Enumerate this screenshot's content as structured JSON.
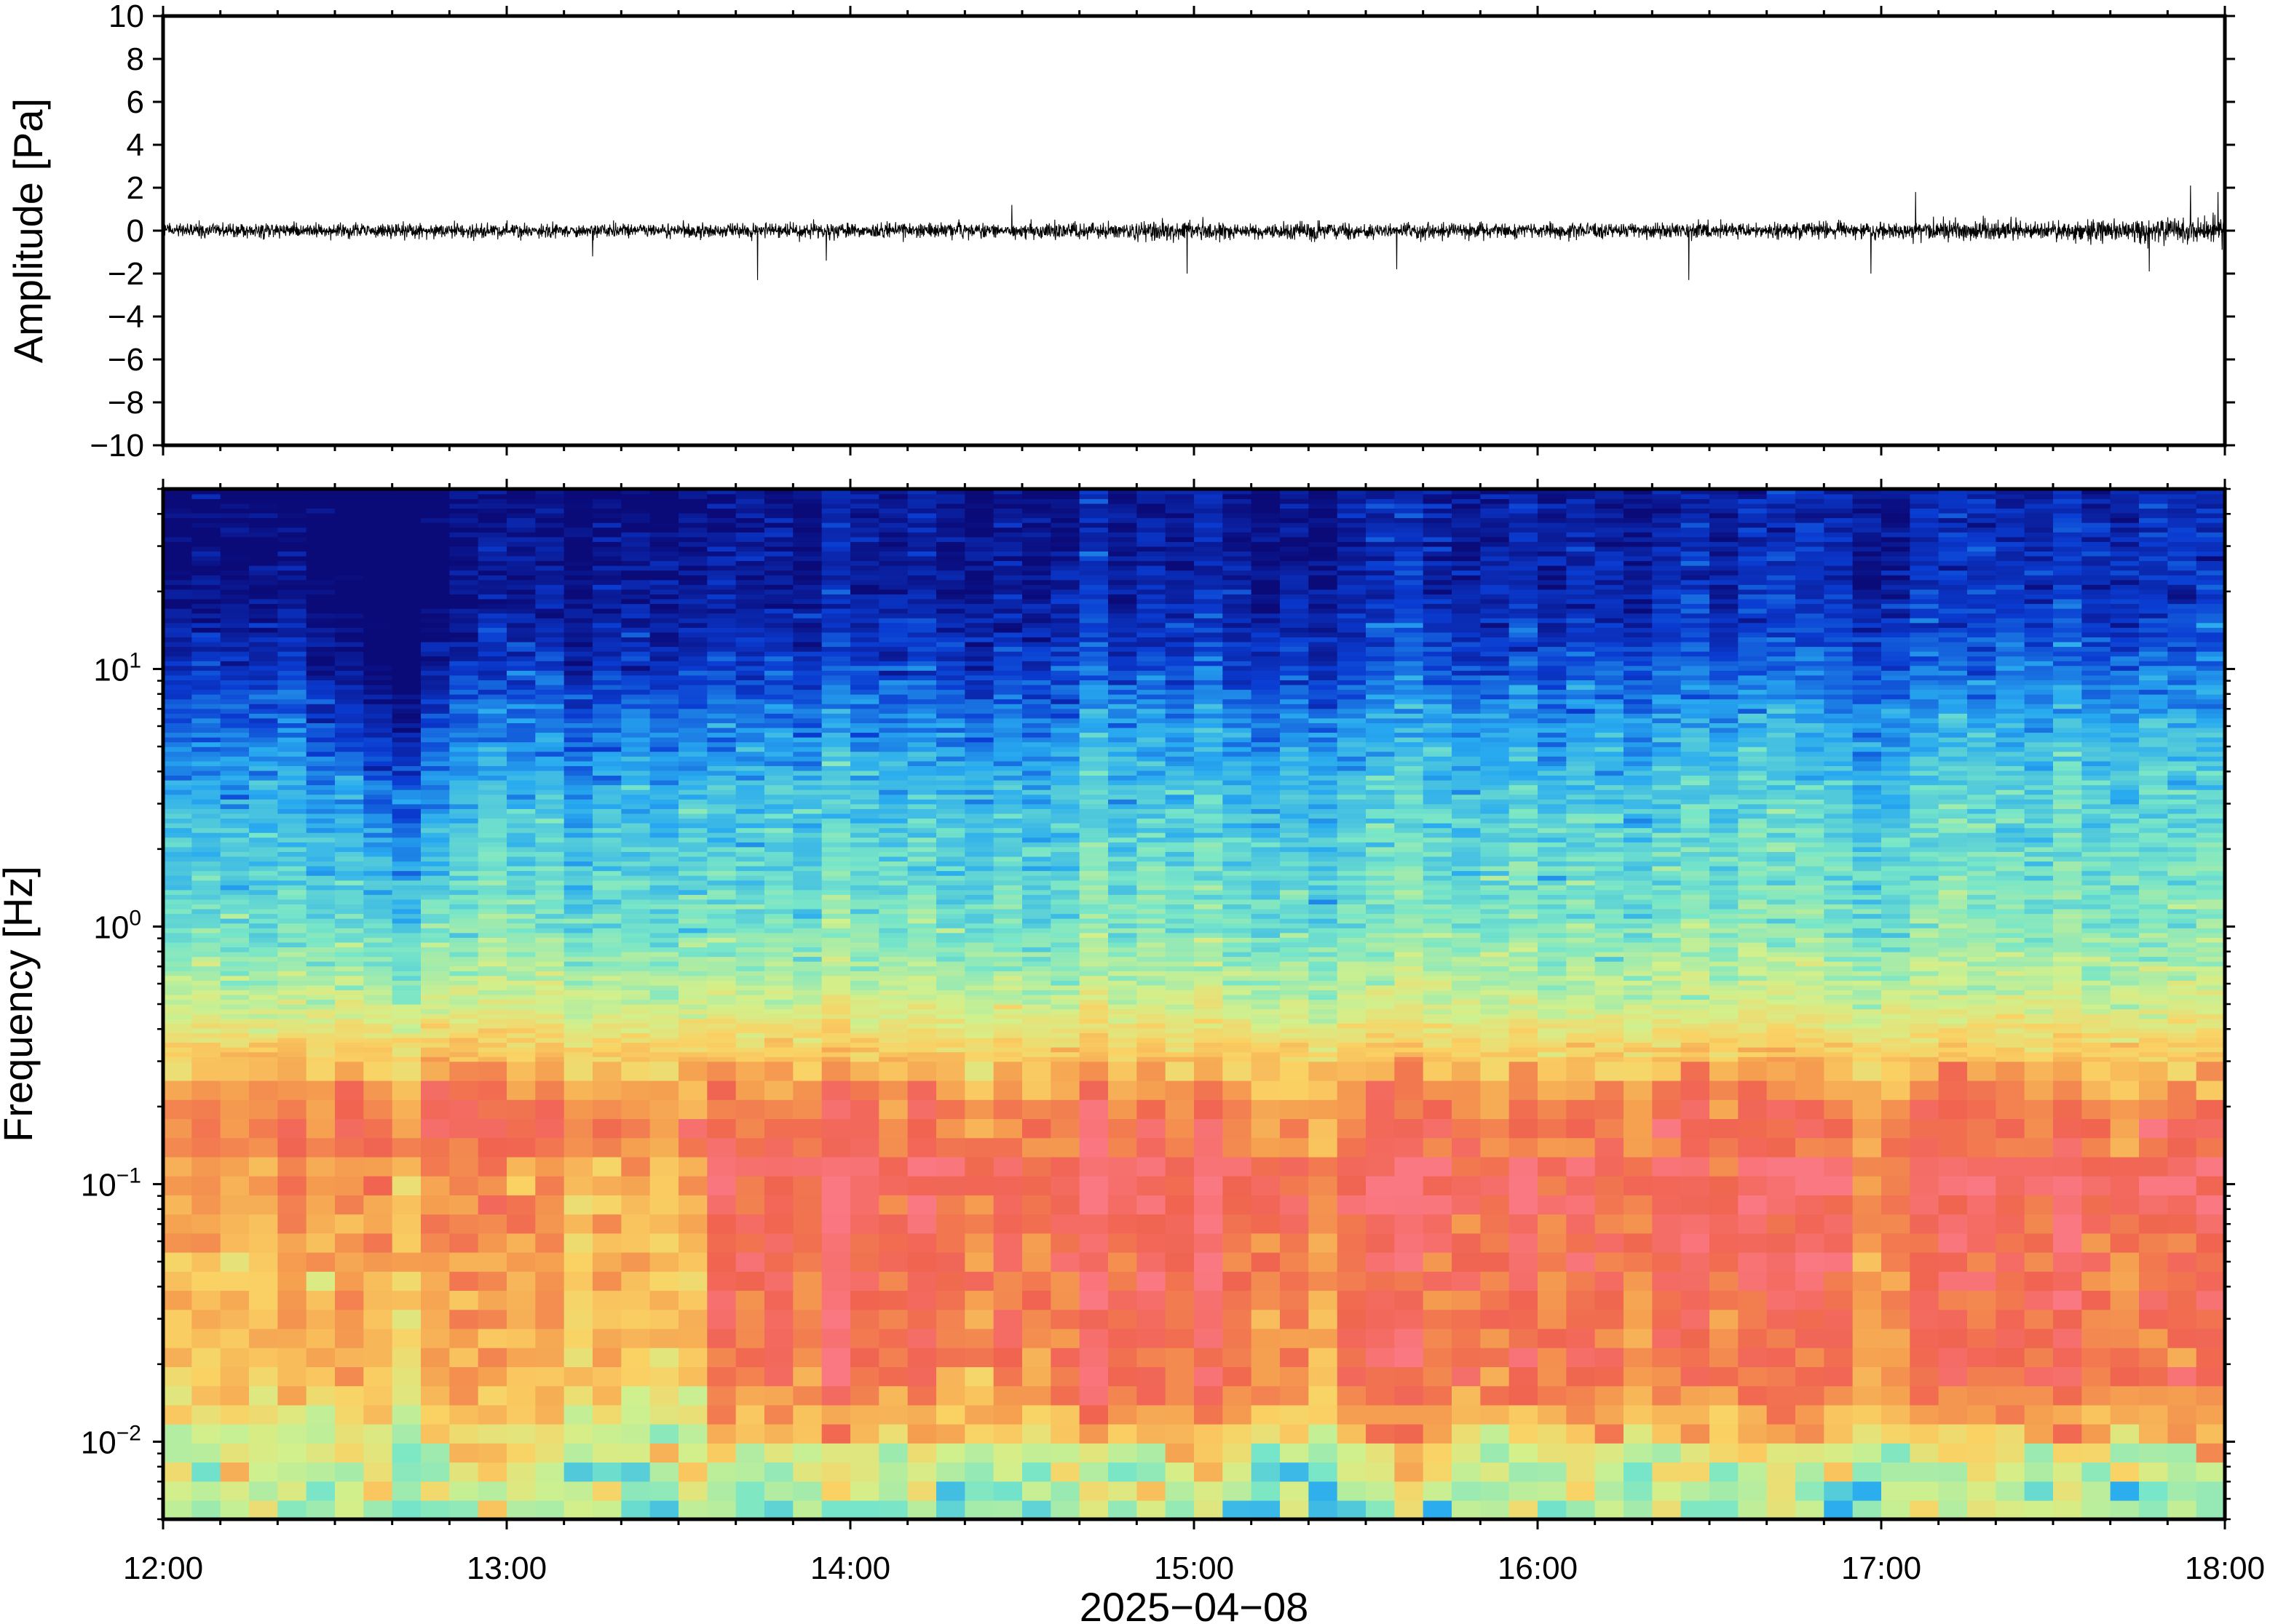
{
  "chart_data": [
    {
      "type": "line",
      "panel": "waveform",
      "ylabel": "Amplitude [Pa]",
      "ylim": [
        -10,
        10
      ],
      "yticks": [
        10,
        8,
        6,
        4,
        2,
        0,
        -2,
        -4,
        -6,
        -8,
        -10
      ],
      "ytick_labels": [
        "10",
        "8",
        "6",
        "4",
        "2",
        "0",
        "−2",
        "−4",
        "−6",
        "−8",
        "−10"
      ],
      "x_range": [
        "2025-04-08 12:00",
        "2025-04-08 18:00"
      ],
      "x_range_hours": [
        12,
        18
      ],
      "typical_envelope": 0.5,
      "series": [
        {
          "values": [
            {
              "x": 13.25,
              "y": 1.3
            },
            {
              "x": 13.25,
              "y": -1.2
            },
            {
              "x": 13.73,
              "y": 1.2
            },
            {
              "x": 13.73,
              "y": -2.3
            },
            {
              "x": 13.93,
              "y": 1.4
            },
            {
              "x": 13.93,
              "y": -1.4
            },
            {
              "x": 14.47,
              "y": 1.2
            },
            {
              "x": 14.98,
              "y": 1.7
            },
            {
              "x": 14.98,
              "y": -2.0
            },
            {
              "x": 15.59,
              "y": -1.8
            },
            {
              "x": 16.44,
              "y": -2.3
            },
            {
              "x": 16.97,
              "y": -2.0
            },
            {
              "x": 17.1,
              "y": -2.9
            },
            {
              "x": 17.1,
              "y": 1.8
            },
            {
              "x": 17.78,
              "y": -1.9
            },
            {
              "x": 17.9,
              "y": 2.1
            },
            {
              "x": 17.98,
              "y": 1.8
            }
          ]
        }
      ],
      "grid": false,
      "line_color": "#000000"
    },
    {
      "type": "heatmap",
      "panel": "spectrogram",
      "ylabel": "Frequency [Hz]",
      "xlabel": "2025−04−08",
      "yscale": "log",
      "ylim": [
        0.005,
        50
      ],
      "yticks": [
        10,
        1,
        0.1,
        0.01
      ],
      "ytick_labels": [
        {
          "base": "10",
          "exp": "1"
        },
        {
          "base": "10",
          "exp": "0"
        },
        {
          "base": "10",
          "exp": "−1"
        },
        {
          "base": "10",
          "exp": "−2"
        }
      ],
      "xticks": [
        "12:00",
        "13:00",
        "14:00",
        "15:00",
        "16:00",
        "17:00",
        "18:00"
      ],
      "colormap": "rainbow (blue = low power, red = high power)",
      "colormap_colors": [
        "#0a0a78",
        "#0a3cd2",
        "#28aaf0",
        "#78e6c8",
        "#d2f08c",
        "#fad264",
        "#f5a050",
        "#f06450",
        "#fa7882"
      ],
      "power_peak_band_hz": [
        0.13,
        0.22
      ],
      "broad_energy_band_hz": [
        0.01,
        0.12
      ],
      "strong_energy_after_time": "13:37",
      "quiet_minimum_time": "12:40",
      "grid": false
    }
  ]
}
